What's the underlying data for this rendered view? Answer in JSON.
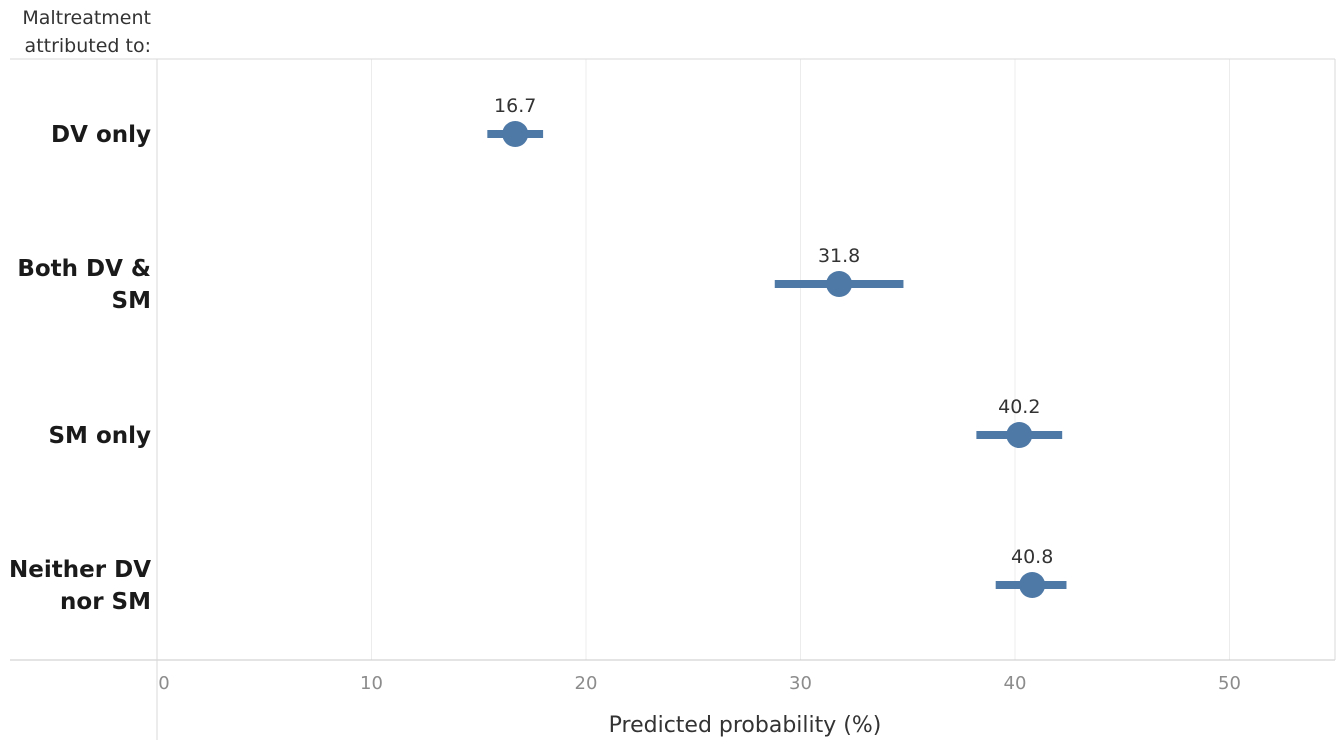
{
  "chart_data": {
    "type": "scatter",
    "orientation": "horizontal",
    "row_header": [
      "Maltreatment",
      "attributed to:"
    ],
    "categories": [
      {
        "label_lines": [
          "DV only"
        ],
        "value": 16.7,
        "ci": [
          15.4,
          18.0
        ],
        "label": "16.7"
      },
      {
        "label_lines": [
          "Both DV &",
          "SM"
        ],
        "value": 31.8,
        "ci": [
          28.8,
          34.8
        ],
        "label": "31.8"
      },
      {
        "label_lines": [
          "SM only"
        ],
        "value": 40.2,
        "ci": [
          38.2,
          42.2
        ],
        "label": "40.2"
      },
      {
        "label_lines": [
          "Neither DV",
          "nor SM"
        ],
        "value": 40.8,
        "ci": [
          39.1,
          42.4
        ],
        "label": "40.8"
      }
    ],
    "xlabel": "Predicted probability (%)",
    "xlim": [
      0,
      55
    ],
    "xticks": [
      0,
      10,
      20,
      30,
      40,
      50
    ],
    "grid": "vertical",
    "color": "#4e79a7"
  }
}
